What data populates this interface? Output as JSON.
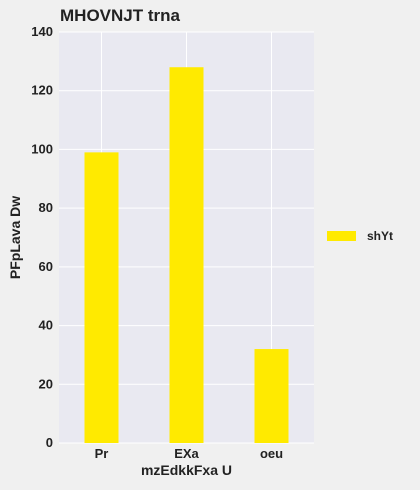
{
  "chart_data": {
    "type": "bar",
    "title": "MHOVNJT trna",
    "xlabel": "mzEdkkFxa U",
    "ylabel": "PFpLava Dw",
    "categories": [
      "Pr",
      "EXa",
      "oeu"
    ],
    "series": [
      {
        "name": "shYt",
        "values": [
          99,
          128,
          32
        ],
        "color": "#ffea00"
      }
    ],
    "ylim": [
      0,
      140
    ],
    "yticks": [
      0,
      20,
      40,
      60,
      80,
      100,
      120,
      140
    ],
    "grid": true,
    "legend": "right",
    "colors": {
      "plot_background": "#e9e9f1",
      "page_background": "#f0f0f0",
      "grid": "#ffffff"
    }
  }
}
